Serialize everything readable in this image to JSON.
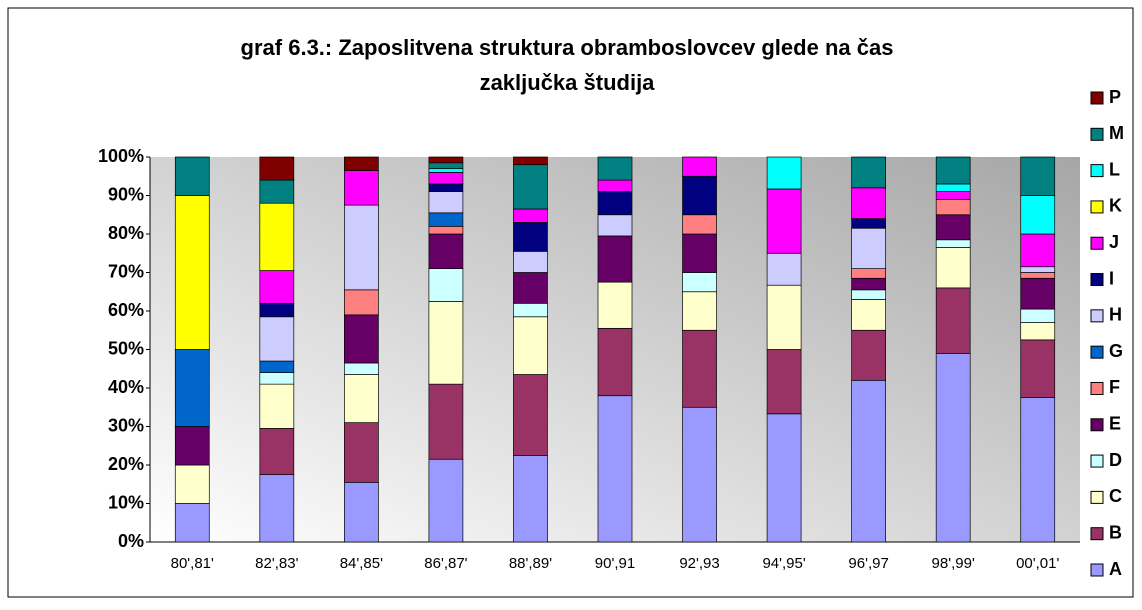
{
  "chart_data": {
    "type": "stacked_bar",
    "title_lines": [
      "graf 6.3.: Zaposlitvena struktura obramboslovcev glede na čas",
      "zaključka študija"
    ],
    "categories": [
      "80',81'",
      "82',83'",
      "84',85'",
      "86',87'",
      "88',89'",
      "90',91",
      "92',93",
      "94',95'",
      "96',97",
      "98',99'",
      "00',01'"
    ],
    "series": [
      {
        "name": "A",
        "color": "#9999ff",
        "values": [
          10,
          17.5,
          15.5,
          21.5,
          22.5,
          38,
          35,
          33.3,
          42,
          49,
          37.5
        ]
      },
      {
        "name": "B",
        "color": "#993366",
        "values": [
          0,
          12,
          15.5,
          19.5,
          21,
          17.5,
          20,
          16.7,
          13,
          17,
          15
        ]
      },
      {
        "name": "C",
        "color": "#ffffcc",
        "values": [
          10,
          11.5,
          12.5,
          21.5,
          15,
          12,
          10,
          16.7,
          8,
          10.5,
          4.5
        ]
      },
      {
        "name": "D",
        "color": "#ccffff",
        "values": [
          0,
          3,
          3,
          8.5,
          3.5,
          0,
          5,
          0,
          2.5,
          2,
          3.5
        ]
      },
      {
        "name": "E",
        "color": "#660066",
        "values": [
          10,
          0,
          12.5,
          9,
          8,
          12,
          10,
          0,
          3,
          6.5,
          8
        ]
      },
      {
        "name": "F",
        "color": "#ff8080",
        "values": [
          0,
          0,
          6.5,
          2,
          0,
          0,
          5,
          0,
          2.5,
          4,
          1.5
        ]
      },
      {
        "name": "G",
        "color": "#0066cc",
        "values": [
          20,
          3,
          0,
          3.5,
          0,
          0,
          0,
          0,
          0,
          0,
          0
        ]
      },
      {
        "name": "H",
        "color": "#ccccff",
        "values": [
          0,
          11.5,
          22,
          5.5,
          5.5,
          5.5,
          0,
          8.3,
          10.5,
          0,
          1.5
        ]
      },
      {
        "name": "I",
        "color": "#000080",
        "values": [
          0,
          3.5,
          0,
          2,
          7.5,
          6,
          10,
          0,
          2.5,
          0,
          0
        ]
      },
      {
        "name": "J",
        "color": "#ff00ff",
        "values": [
          0,
          8.5,
          9,
          3,
          3.5,
          3,
          5,
          16.7,
          8,
          2,
          8.5
        ]
      },
      {
        "name": "K",
        "color": "#ffff00",
        "values": [
          40,
          17.5,
          0,
          0,
          0,
          0,
          0,
          0,
          0,
          0,
          0
        ]
      },
      {
        "name": "L",
        "color": "#00ffff",
        "values": [
          0,
          0,
          0,
          1,
          0,
          0,
          0,
          8.3,
          0,
          2,
          10
        ]
      },
      {
        "name": "M",
        "color": "#008080",
        "values": [
          10,
          6,
          0,
          1.5,
          11.5,
          6,
          0,
          0,
          8,
          7,
          10
        ]
      },
      {
        "name": "P",
        "color": "#800000",
        "values": [
          0,
          6,
          3.5,
          1.5,
          2,
          0,
          0,
          0,
          0,
          0,
          0
        ]
      }
    ],
    "ylim": [
      0,
      100
    ],
    "yticks": [
      {
        "value": 0,
        "label": "0%"
      },
      {
        "value": 10,
        "label": "10%"
      },
      {
        "value": 20,
        "label": "20%"
      },
      {
        "value": 30,
        "label": "30%"
      },
      {
        "value": 40,
        "label": "40%"
      },
      {
        "value": 50,
        "label": "50%"
      },
      {
        "value": 60,
        "label": "60%"
      },
      {
        "value": 70,
        "label": "70%"
      },
      {
        "value": 80,
        "label": "80%"
      },
      {
        "value": 90,
        "label": "90%"
      },
      {
        "value": 100,
        "label": "100%"
      }
    ],
    "legend": "right"
  }
}
